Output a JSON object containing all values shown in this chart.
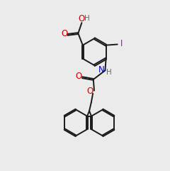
{
  "bg_color": "#ebebeb",
  "bond_color": "#1a1a1a",
  "O_color": "#cc0000",
  "N_color": "#0000cc",
  "I_color": "#aa00cc",
  "H_color": "#666666",
  "lw": 1.4,
  "dbl_off": 0.045,
  "fs": 7.5,
  "xlim": [
    0,
    10
  ],
  "ylim": [
    0,
    10
  ]
}
